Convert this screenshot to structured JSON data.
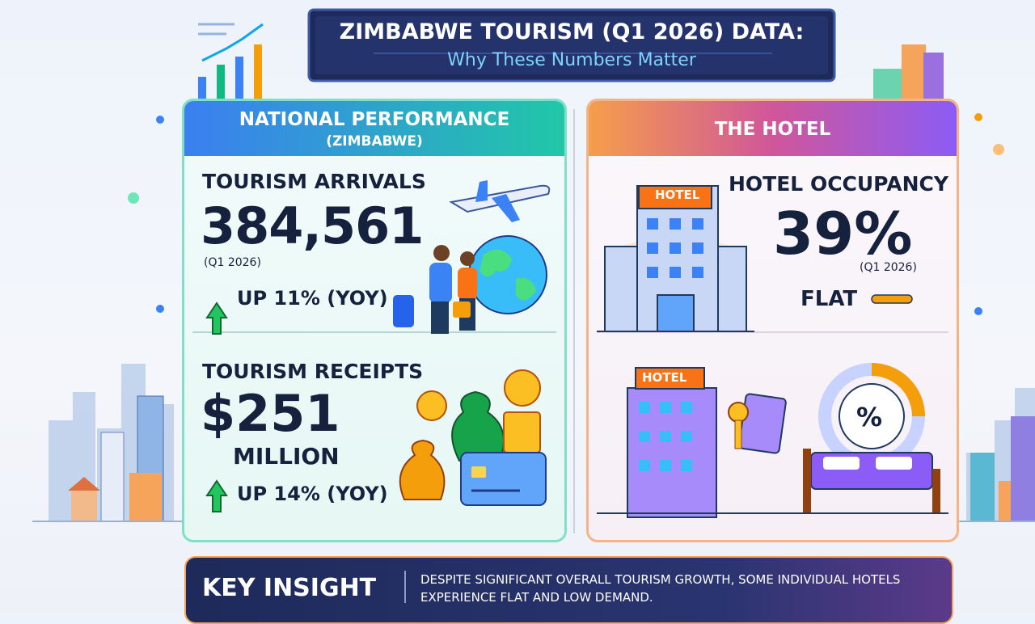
{
  "header": {
    "title": "ZIMBABWE TOURISM (Q1 2026) DATA:",
    "subtitle": "Why These Numbers Matter"
  },
  "national": {
    "heading": "NATIONAL PERFORMANCE",
    "subheading": "(ZIMBABWE)",
    "arrivals": {
      "label": "TOURISM ARRIVALS",
      "value": "384,561",
      "period": "(Q1 2026)",
      "change": "UP 11% (YOY)"
    },
    "receipts": {
      "label": "TOURISM RECEIPTS",
      "value": "$251",
      "unit": "MILLION",
      "change": "UP 14% (YOY)"
    }
  },
  "hotel": {
    "heading": "THE HOTEL",
    "occupancy": {
      "label": "HOTEL OCCUPANCY",
      "value": "39%",
      "period": "(Q1 2026)",
      "change": "FLAT"
    },
    "signs": [
      "HOTEL",
      "HOTEL"
    ],
    "icon_text": "%"
  },
  "insight": {
    "label": "KEY INSIGHT",
    "text": "DESPITE SIGNIFICANT OVERALL TOURISM GROWTH, SOME INDIVIDUAL HOTELS EXPERIENCE FLAT AND LOW DEMAND."
  }
}
